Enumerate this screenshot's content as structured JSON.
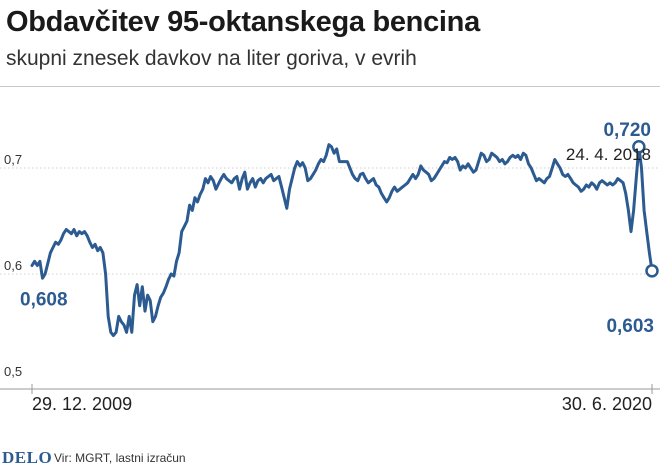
{
  "header": {
    "title": "Obdavčitev 95-oktanskega bencina",
    "subtitle": "skupni znesek davkov na liter goriva, v evrih"
  },
  "footer": {
    "logo": "DELO",
    "source": "Vir: MGRT, lastni izračun"
  },
  "colors": {
    "line": "#2c5b91",
    "grid": "#cfcfcf",
    "axis": "#9a9a9a"
  },
  "chart_data": {
    "type": "line",
    "title": "Obdavčitev 95-oktanskega bencina",
    "subtitle": "skupni znesek davkov na liter goriva, v evrih",
    "xlabel": "",
    "ylabel": "",
    "x_start": "29. 12. 2009",
    "x_end": "30. 6. 2020",
    "x_tick_labels": [
      "29. 12. 2009",
      "30. 6. 2020"
    ],
    "ylim": [
      0.5,
      0.74
    ],
    "y_ticks": [
      0.5,
      0.6,
      0.7
    ],
    "y_tick_labels": [
      "0,5",
      "0,6",
      "0,7"
    ],
    "grid": true,
    "series": [
      {
        "values": [
          0.608,
          0.612,
          0.608,
          0.612,
          0.596,
          0.6,
          0.61,
          0.62,
          0.625,
          0.63,
          0.628,
          0.632,
          0.638,
          0.642,
          0.64,
          0.638,
          0.642,
          0.636,
          0.64,
          0.638,
          0.64,
          0.636,
          0.63,
          0.625,
          0.628,
          0.622,
          0.625,
          0.62,
          0.6,
          0.56,
          0.545,
          0.542,
          0.545,
          0.56,
          0.555,
          0.552,
          0.545,
          0.56,
          0.545,
          0.58,
          0.59,
          0.57,
          0.588,
          0.565,
          0.58,
          0.575,
          0.555,
          0.56,
          0.57,
          0.578,
          0.582,
          0.588,
          0.595,
          0.6,
          0.598,
          0.612,
          0.62,
          0.64,
          0.645,
          0.65,
          0.665,
          0.66,
          0.672,
          0.668,
          0.675,
          0.68,
          0.69,
          0.686,
          0.692,
          0.688,
          0.68,
          0.685,
          0.69,
          0.694,
          0.69,
          0.688,
          0.686,
          0.69,
          0.692,
          0.68,
          0.69,
          0.696,
          0.68,
          0.686,
          0.69,
          0.682,
          0.688,
          0.69,
          0.686,
          0.69,
          0.692,
          0.694,
          0.688,
          0.69,
          0.692,
          0.682,
          0.672,
          0.662,
          0.68,
          0.69,
          0.7,
          0.706,
          0.702,
          0.705,
          0.7,
          0.688,
          0.69,
          0.694,
          0.698,
          0.704,
          0.708,
          0.706,
          0.712,
          0.722,
          0.72,
          0.714,
          0.718,
          0.706,
          0.706,
          0.706,
          0.706,
          0.7,
          0.694,
          0.69,
          0.688,
          0.694,
          0.695,
          0.69,
          0.686,
          0.688,
          0.69,
          0.684,
          0.682,
          0.676,
          0.672,
          0.668,
          0.672,
          0.678,
          0.682,
          0.678,
          0.68,
          0.682,
          0.684,
          0.686,
          0.69,
          0.694,
          0.69,
          0.694,
          0.702,
          0.698,
          0.696,
          0.694,
          0.688,
          0.69,
          0.694,
          0.698,
          0.702,
          0.706,
          0.705,
          0.71,
          0.708,
          0.71,
          0.706,
          0.698,
          0.702,
          0.7,
          0.704,
          0.7,
          0.696,
          0.698,
          0.706,
          0.714,
          0.712,
          0.706,
          0.708,
          0.714,
          0.712,
          0.71,
          0.706,
          0.708,
          0.704,
          0.706,
          0.71,
          0.712,
          0.71,
          0.712,
          0.708,
          0.714,
          0.712,
          0.704,
          0.7,
          0.694,
          0.688,
          0.69,
          0.688,
          0.686,
          0.69,
          0.692,
          0.7,
          0.708,
          0.704,
          0.7,
          0.694,
          0.692,
          0.694,
          0.69,
          0.686,
          0.684,
          0.682,
          0.678,
          0.68,
          0.684,
          0.682,
          0.686,
          0.684,
          0.68,
          0.686,
          0.688,
          0.686,
          0.684,
          0.686,
          0.684,
          0.686,
          0.69,
          0.688,
          0.686,
          0.676,
          0.66,
          0.64,
          0.66,
          0.69,
          0.72,
          0.7,
          0.66,
          0.64,
          0.62,
          0.603
        ]
      }
    ],
    "annotations": [
      {
        "label": "0,608",
        "value": 0.608
      },
      {
        "label": "0,720",
        "date": "24. 4. 2018",
        "value": 0.72
      },
      {
        "label": "0,603",
        "value": 0.603
      }
    ]
  }
}
